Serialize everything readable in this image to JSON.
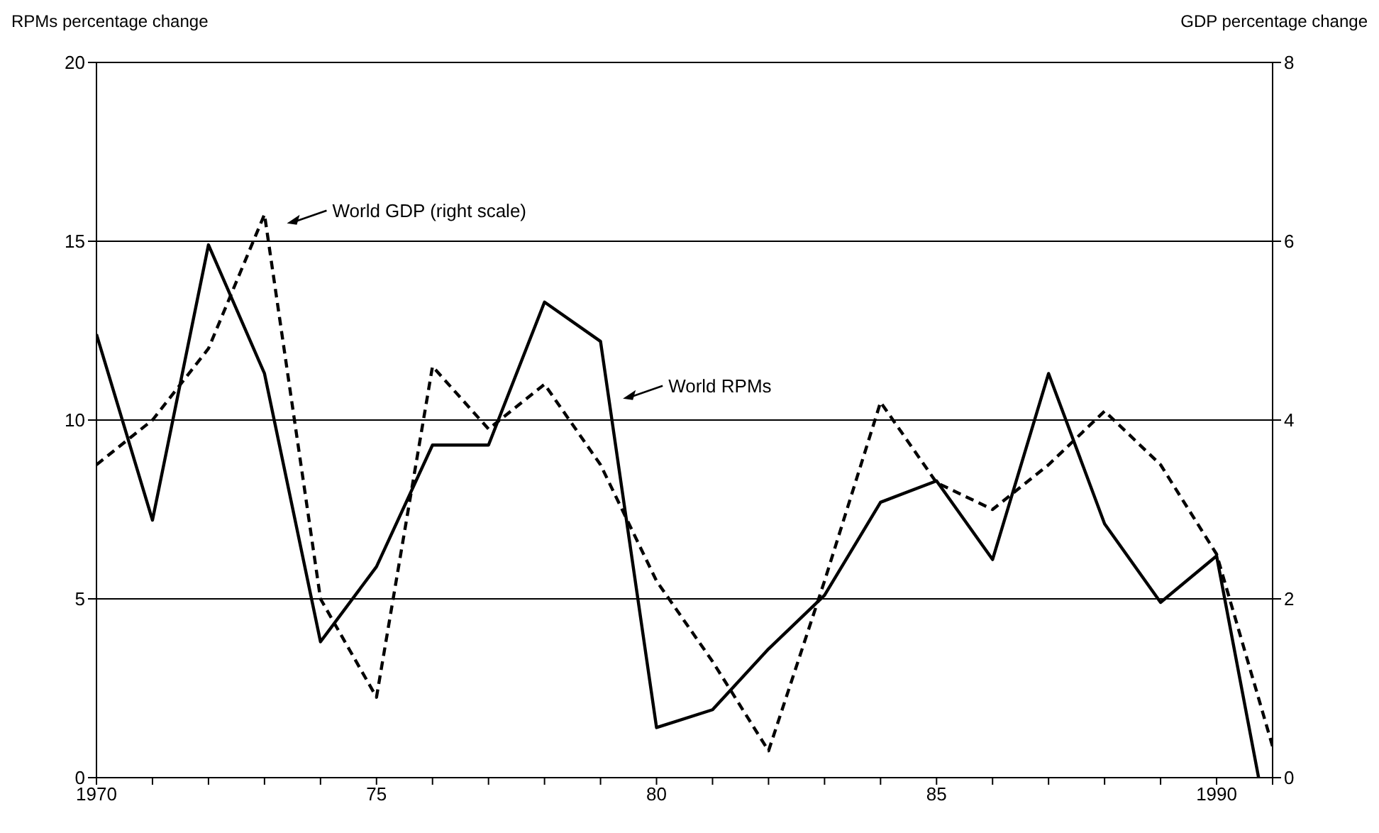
{
  "chart_data": {
    "type": "line",
    "ylabel": "RPMs percentage change",
    "y2label": "GDP percentage change",
    "xlim": [
      1970,
      1991
    ],
    "xticks": [
      1970,
      {
        "value": 1971,
        "label": null
      },
      {
        "value": 1972,
        "label": null
      },
      {
        "value": 1973,
        "label": null
      },
      {
        "value": 1974,
        "label": null
      },
      {
        "value": 1975,
        "label": "75"
      },
      {
        "value": 1976,
        "label": null
      },
      {
        "value": 1977,
        "label": null
      },
      {
        "value": 1978,
        "label": null
      },
      {
        "value": 1979,
        "label": null
      },
      {
        "value": 1980,
        "label": "80"
      },
      {
        "value": 1981,
        "label": null
      },
      {
        "value": 1982,
        "label": null
      },
      {
        "value": 1983,
        "label": null
      },
      {
        "value": 1984,
        "label": null
      },
      {
        "value": 1985,
        "label": "85"
      },
      {
        "value": 1986,
        "label": null
      },
      {
        "value": 1987,
        "label": null
      },
      {
        "value": 1988,
        "label": null
      },
      {
        "value": 1989,
        "label": null
      },
      {
        "value": 1990,
        "label": "1990"
      },
      {
        "value": 1991,
        "label": null
      }
    ],
    "ylim": [
      0,
      20
    ],
    "yticks": [
      0,
      5,
      10,
      15,
      20
    ],
    "y2lim": [
      0,
      8
    ],
    "y2ticks": [
      0,
      2,
      4,
      6,
      8
    ],
    "grid": "y",
    "legend": false,
    "marker": "none",
    "series": [
      {
        "color": "#000000",
        "line_style": "solid",
        "x": [
          1970,
          1971,
          1972,
          1973,
          1974,
          1975,
          1976,
          1977,
          1978,
          1979,
          1980,
          1981,
          1982,
          1983,
          1984,
          1985,
          1986,
          1987,
          1988,
          1989,
          1990,
          1990.75
        ],
        "values": [
          12.4,
          7.2,
          14.9,
          11.3,
          3.8,
          5.9,
          9.3,
          9.3,
          13.3,
          12.2,
          1.4,
          1.9,
          3.6,
          5.1,
          7.7,
          8.3,
          6.1,
          11.3,
          7.1,
          4.9,
          6.2,
          0
        ]
      },
      {
        "color": "#000000",
        "line_style": "dashed",
        "axis": "y2",
        "x": [
          1970,
          1971,
          1972,
          1973,
          1974,
          1975,
          1976,
          1977,
          1978,
          1979,
          1980,
          1981,
          1982,
          1983,
          1984,
          1985,
          1986,
          1987,
          1988,
          1989,
          1990,
          1991
        ],
        "values": [
          3.5,
          4.0,
          4.8,
          6.3,
          2.0,
          0.9,
          4.6,
          3.9,
          4.4,
          3.5,
          2.2,
          1.3,
          0.3,
          2.2,
          4.2,
          3.3,
          3.0,
          3.5,
          4.1,
          3.5,
          2.5,
          0.35
        ]
      }
    ],
    "annotations": [
      "World GDP (right scale)",
      "World RPMs"
    ]
  }
}
